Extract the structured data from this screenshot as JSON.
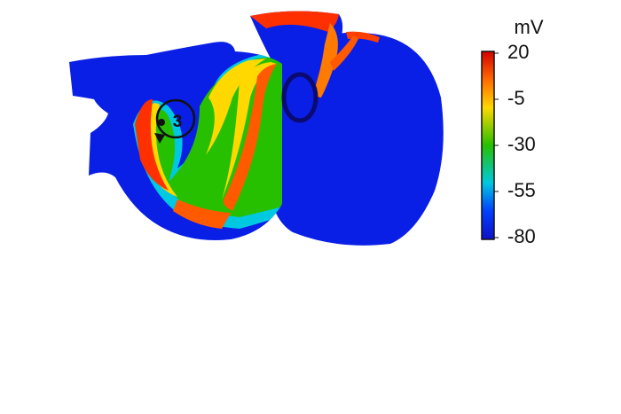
{
  "figure": {
    "colorbar": {
      "unit": "mV",
      "range": [
        -80,
        20
      ],
      "ticks": [
        20,
        -5,
        -30,
        -55,
        -80
      ]
    },
    "annotation": "3"
  }
}
